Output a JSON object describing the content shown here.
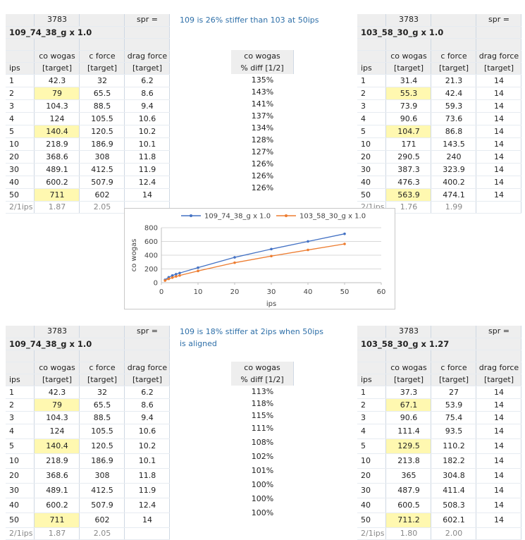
{
  "sheets": [
    {
      "spr_code": "3783",
      "spr_label": "spr =",
      "title": "109_74_38_g x 1.0",
      "headers": {
        "ips": "ips",
        "co_wogas": "co wogas",
        "c_force": "c force",
        "drag_force": "drag force",
        "target": "[target]"
      },
      "rows": [
        {
          "ips": "1",
          "co": "42.3",
          "cf": "32",
          "df": "6.2",
          "hl": false
        },
        {
          "ips": "2",
          "co": "79",
          "cf": "65.5",
          "df": "8.6",
          "hl": true
        },
        {
          "ips": "3",
          "co": "104.3",
          "cf": "88.5",
          "df": "9.4",
          "hl": false
        },
        {
          "ips": "4",
          "co": "124",
          "cf": "105.5",
          "df": "10.6",
          "hl": false
        },
        {
          "ips": "5",
          "co": "140.4",
          "cf": "120.5",
          "df": "10.2",
          "hl": true
        },
        {
          "ips": "10",
          "co": "218.9",
          "cf": "186.9",
          "df": "10.1",
          "hl": false
        },
        {
          "ips": "20",
          "co": "368.6",
          "cf": "308",
          "df": "11.8",
          "hl": false
        },
        {
          "ips": "30",
          "co": "489.1",
          "cf": "412.5",
          "df": "11.9",
          "hl": false
        },
        {
          "ips": "40",
          "co": "600.2",
          "cf": "507.9",
          "df": "12.4",
          "hl": false
        },
        {
          "ips": "50",
          "co": "711",
          "cf": "602",
          "df": "14",
          "hl": true
        }
      ],
      "footer": {
        "label": "2/1ips",
        "co": "1.87",
        "cf": "2.05"
      }
    },
    {
      "spr_code": "3783",
      "spr_label": "spr =",
      "title": "103_58_30_g x 1.0",
      "headers": {
        "ips": "ips",
        "co_wogas": "co wogas",
        "c_force": "c force",
        "drag_force": "drag force",
        "target": "[target]"
      },
      "rows": [
        {
          "ips": "1",
          "co": "31.4",
          "cf": "21.3",
          "df": "14",
          "hl": false
        },
        {
          "ips": "2",
          "co": "55.3",
          "cf": "42.4",
          "df": "14",
          "hl": true
        },
        {
          "ips": "3",
          "co": "73.9",
          "cf": "59.3",
          "df": "14",
          "hl": false
        },
        {
          "ips": "4",
          "co": "90.6",
          "cf": "73.6",
          "df": "14",
          "hl": false
        },
        {
          "ips": "5",
          "co": "104.7",
          "cf": "86.8",
          "df": "14",
          "hl": true
        },
        {
          "ips": "10",
          "co": "171",
          "cf": "143.5",
          "df": "14",
          "hl": false
        },
        {
          "ips": "20",
          "co": "290.5",
          "cf": "240",
          "df": "14",
          "hl": false
        },
        {
          "ips": "30",
          "co": "387.3",
          "cf": "323.9",
          "df": "14",
          "hl": false
        },
        {
          "ips": "40",
          "co": "476.3",
          "cf": "400.2",
          "df": "14",
          "hl": false
        },
        {
          "ips": "50",
          "co": "563.9",
          "cf": "474.1",
          "df": "14",
          "hl": true
        }
      ],
      "footer": {
        "label": "2/1ips",
        "co": "1.76",
        "cf": "1.99"
      }
    },
    {
      "spr_code": "3783",
      "spr_label": "spr =",
      "title": "109_74_38_g x 1.0",
      "headers": {
        "ips": "ips",
        "co_wogas": "co wogas",
        "c_force": "c force",
        "drag_force": "drag force",
        "target": "[target]"
      },
      "rows": [
        {
          "ips": "1",
          "co": "42.3",
          "cf": "32",
          "df": "6.2",
          "hl": false
        },
        {
          "ips": "2",
          "co": "79",
          "cf": "65.5",
          "df": "8.6",
          "hl": true
        },
        {
          "ips": "3",
          "co": "104.3",
          "cf": "88.5",
          "df": "9.4",
          "hl": false
        },
        {
          "ips": "4",
          "co": "124",
          "cf": "105.5",
          "df": "10.6",
          "hl": false
        },
        {
          "ips": "5",
          "co": "140.4",
          "cf": "120.5",
          "df": "10.2",
          "hl": true
        },
        {
          "ips": "10",
          "co": "218.9",
          "cf": "186.9",
          "df": "10.1",
          "hl": false
        },
        {
          "ips": "20",
          "co": "368.6",
          "cf": "308",
          "df": "11.8",
          "hl": false
        },
        {
          "ips": "30",
          "co": "489.1",
          "cf": "412.5",
          "df": "11.9",
          "hl": false
        },
        {
          "ips": "40",
          "co": "600.2",
          "cf": "507.9",
          "df": "12.4",
          "hl": false
        },
        {
          "ips": "50",
          "co": "711",
          "cf": "602",
          "df": "14",
          "hl": true
        }
      ],
      "footer": {
        "label": "2/1ips",
        "co": "1.87",
        "cf": "2.05"
      }
    },
    {
      "spr_code": "3783",
      "spr_label": "spr =",
      "title": "103_58_30_g x 1.27",
      "headers": {
        "ips": "ips",
        "co_wogas": "co wogas",
        "c_force": "c force",
        "drag_force": "drag force",
        "target": "[target]"
      },
      "rows": [
        {
          "ips": "1",
          "co": "37.3",
          "cf": "27",
          "df": "14",
          "hl": false
        },
        {
          "ips": "2",
          "co": "67.1",
          "cf": "53.9",
          "df": "14",
          "hl": true
        },
        {
          "ips": "3",
          "co": "90.6",
          "cf": "75.4",
          "df": "14",
          "hl": false
        },
        {
          "ips": "4",
          "co": "111.4",
          "cf": "93.5",
          "df": "14",
          "hl": false
        },
        {
          "ips": "5",
          "co": "129.5",
          "cf": "110.2",
          "df": "14",
          "hl": true
        },
        {
          "ips": "10",
          "co": "213.8",
          "cf": "182.2",
          "df": "14",
          "hl": false
        },
        {
          "ips": "20",
          "co": "365",
          "cf": "304.8",
          "df": "14",
          "hl": false
        },
        {
          "ips": "30",
          "co": "487.9",
          "cf": "411.4",
          "df": "14",
          "hl": false
        },
        {
          "ips": "40",
          "co": "600.5",
          "cf": "508.3",
          "df": "14",
          "hl": false
        },
        {
          "ips": "50",
          "co": "711.2",
          "cf": "602.1",
          "df": "14",
          "hl": true
        }
      ],
      "footer": {
        "label": "2/1ips",
        "co": "1.80",
        "cf": "2.00"
      }
    }
  ],
  "comparisons": [
    {
      "note": [
        "109 is 26% stiffer than 103 at 50ips"
      ],
      "header": [
        "co wogas",
        "% diff  [1/2]"
      ],
      "values": [
        "135%",
        "143%",
        "141%",
        "137%",
        "134%",
        "128%",
        "127%",
        "126%",
        "126%",
        "126%"
      ]
    },
    {
      "note": [
        "109 is 18% stiffer at 2ips when 50ips",
        "is aligned"
      ],
      "header": [
        "co wogas",
        "% diff  [1/2]"
      ],
      "values": [
        "113%",
        "118%",
        "115%",
        "111%",
        "108%",
        "102%",
        "101%",
        "100%",
        "100%",
        "100%"
      ]
    }
  ],
  "chart_data": {
    "type": "line",
    "title": "",
    "xlabel": "ips",
    "ylabel": "co wogas",
    "xlim": [
      0,
      60
    ],
    "ylim": [
      0,
      800
    ],
    "xticks": [
      "0",
      "10",
      "20",
      "30",
      "40",
      "50",
      "60"
    ],
    "yticks": [
      "0",
      "200",
      "400",
      "600",
      "800"
    ],
    "x": [
      1,
      2,
      3,
      4,
      5,
      10,
      20,
      30,
      40,
      50
    ],
    "series": [
      {
        "name": "109_74_38_g x 1.0",
        "color": "#4472c4",
        "values": [
          42.3,
          79,
          104.3,
          124,
          140.4,
          218.9,
          368.6,
          489.1,
          600.2,
          711
        ]
      },
      {
        "name": "103_58_30_g x 1.0",
        "color": "#ed7d31",
        "values": [
          31.4,
          55.3,
          73.9,
          90.6,
          104.7,
          171,
          290.5,
          387.3,
          476.3,
          563.9
        ]
      }
    ],
    "legend": "top",
    "grid": true
  }
}
